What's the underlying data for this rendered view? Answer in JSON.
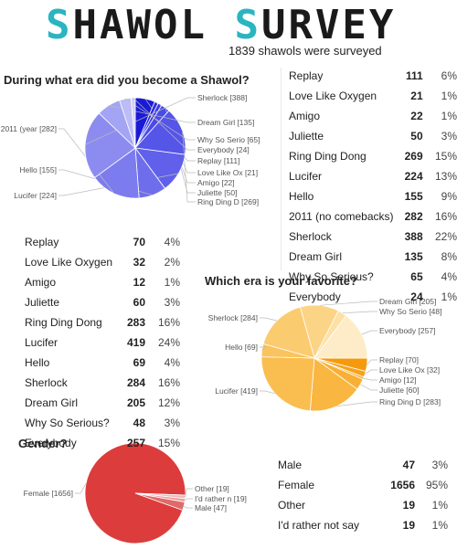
{
  "header": {
    "title_accent_1": "S",
    "title_part_1": "HAWOL ",
    "title_accent_2": "S",
    "title_part_2": "URVEY",
    "subtitle": "1839 shawols were surveyed"
  },
  "colors": {
    "accent": "#2ab5c0",
    "era_blue": [
      "#1a1ad6",
      "#2b2be0",
      "#3d3de6",
      "#4f4fe8",
      "#5a5aea",
      "#6a6aec",
      "#7878ee",
      "#8888f0",
      "#9898f2",
      "#a8a8f4",
      "#b8b8f6",
      "#c8c8f8"
    ],
    "fav_orange": "#f5a623",
    "gender_red": "#dd3c3c"
  },
  "questions": {
    "era": "During what era did you become a Shawol?",
    "favorite": "Which era is your favorite?",
    "gender": "Gender?"
  },
  "tables": {
    "era": [
      {
        "label": "Replay",
        "count": "111",
        "pct": "6%"
      },
      {
        "label": "Love Like Oxygen",
        "count": "21",
        "pct": "1%"
      },
      {
        "label": "Amigo",
        "count": "22",
        "pct": "1%"
      },
      {
        "label": "Juliette",
        "count": "50",
        "pct": "3%"
      },
      {
        "label": "Ring Ding Dong",
        "count": "269",
        "pct": "15%"
      },
      {
        "label": "Lucifer",
        "count": "224",
        "pct": "13%"
      },
      {
        "label": "Hello",
        "count": "155",
        "pct": "9%"
      },
      {
        "label": "2011 (no comebacks)",
        "count": "282",
        "pct": "16%"
      },
      {
        "label": "Sherlock",
        "count": "388",
        "pct": "22%"
      },
      {
        "label": "Dream Girl",
        "count": "135",
        "pct": "8%"
      },
      {
        "label": "Why So Serious?",
        "count": "65",
        "pct": "4%"
      },
      {
        "label": "Everybody",
        "count": "24",
        "pct": "1%"
      }
    ],
    "favorite": [
      {
        "label": "Replay",
        "count": "70",
        "pct": "4%"
      },
      {
        "label": "Love Like Oxygen",
        "count": "32",
        "pct": "2%"
      },
      {
        "label": "Amigo",
        "count": "12",
        "pct": "1%"
      },
      {
        "label": "Juliette",
        "count": "60",
        "pct": "3%"
      },
      {
        "label": "Ring Ding Dong",
        "count": "283",
        "pct": "16%"
      },
      {
        "label": "Lucifer",
        "count": "419",
        "pct": "24%"
      },
      {
        "label": "Hello",
        "count": "69",
        "pct": "4%"
      },
      {
        "label": "Sherlock",
        "count": "284",
        "pct": "16%"
      },
      {
        "label": "Dream Girl",
        "count": "205",
        "pct": "12%"
      },
      {
        "label": "Why So Serious?",
        "count": "48",
        "pct": "3%"
      },
      {
        "label": "Everybody",
        "count": "257",
        "pct": "15%"
      }
    ],
    "gender": [
      {
        "label": "Male",
        "count": "47",
        "pct": "3%"
      },
      {
        "label": "Female",
        "count": "1656",
        "pct": "95%"
      },
      {
        "label": "Other",
        "count": "19",
        "pct": "1%"
      },
      {
        "label": "I'd rather not say",
        "count": "19",
        "pct": "1%"
      }
    ]
  },
  "chart_data": [
    {
      "type": "pie",
      "title": "During what era did you become a Shawol?",
      "slices": [
        {
          "label": "Replay",
          "value": 111,
          "tag": "Replay [111]",
          "color": "#1a1ad6"
        },
        {
          "label": "Love Like Oxygen",
          "value": 21,
          "tag": "Love Like Ox [21]",
          "color": "#2b2be0"
        },
        {
          "label": "Amigo",
          "value": 22,
          "tag": "Amigo [22]",
          "color": "#3d3de6"
        },
        {
          "label": "Juliette",
          "value": 50,
          "tag": "Juliette [50]",
          "color": "#4a4ae8"
        },
        {
          "label": "Ring Ding Dong",
          "value": 269,
          "tag": "Ring Ding D [269]",
          "color": "#5555e8"
        },
        {
          "label": "Lucifer",
          "value": 224,
          "tag": "Lucifer [224]",
          "color": "#6060ea"
        },
        {
          "label": "Hello",
          "value": 155,
          "tag": "Hello [155]",
          "color": "#6e6eec"
        },
        {
          "label": "2011 (no comebacks)",
          "value": 282,
          "tag": "2011 (year [282]",
          "color": "#7c7cee"
        },
        {
          "label": "Sherlock",
          "value": 388,
          "tag": "Sherlock [388]",
          "color": "#8c8cf0"
        },
        {
          "label": "Dream Girl",
          "value": 135,
          "tag": "Dream Girl [135]",
          "color": "#a4a4f4"
        },
        {
          "label": "Why So Serious?",
          "value": 65,
          "tag": "Why So Serio [65]",
          "color": "#bcbcf7"
        },
        {
          "label": "Everybody",
          "value": 24,
          "tag": "Everybody [24]",
          "color": "#d0d0fa"
        }
      ]
    },
    {
      "type": "pie",
      "title": "Which era is your favorite?",
      "slices": [
        {
          "label": "Replay",
          "value": 70,
          "tag": "Replay [70]",
          "color": "#f59a0c"
        },
        {
          "label": "Love Like Oxygen",
          "value": 32,
          "tag": "Love Like Ox [32]",
          "color": "#f6a21c"
        },
        {
          "label": "Amigo",
          "value": 12,
          "tag": "Amigo [12]",
          "color": "#f7a928"
        },
        {
          "label": "Juliette",
          "value": 60,
          "tag": "Juliette [60]",
          "color": "#f8b034"
        },
        {
          "label": "Ring Ding Dong",
          "value": 283,
          "tag": "Ring Ding D [283]",
          "color": "#f9b640"
        },
        {
          "label": "Lucifer",
          "value": 419,
          "tag": "Lucifer [419]",
          "color": "#fabd50"
        },
        {
          "label": "Hello",
          "value": 69,
          "tag": "Hello [69]",
          "color": "#fbc35e"
        },
        {
          "label": "Sherlock",
          "value": 284,
          "tag": "Sherlock [284]",
          "color": "#fbcb70"
        },
        {
          "label": "Dream Girl",
          "value": 205,
          "tag": "Dream Girl [205]",
          "color": "#fcd486"
        },
        {
          "label": "Why So Serious?",
          "value": 48,
          "tag": "Why So Serio [48]",
          "color": "#fde0a4"
        },
        {
          "label": "Everybody",
          "value": 257,
          "tag": "Everybody [257]",
          "color": "#feecc8"
        }
      ]
    },
    {
      "type": "pie",
      "title": "Gender?",
      "slices": [
        {
          "label": "Male",
          "value": 47,
          "tag": "Male [47]",
          "color": "#e06a6a"
        },
        {
          "label": "Female",
          "value": 1656,
          "tag": "Female [1656]",
          "color": "#dd3c3c"
        },
        {
          "label": "Other",
          "value": 19,
          "tag": "Other [19]",
          "color": "#f2b8b8"
        },
        {
          "label": "I'd rather not say",
          "value": 19,
          "tag": "I'd rather n [19]",
          "color": "#eca0a0"
        }
      ]
    }
  ]
}
